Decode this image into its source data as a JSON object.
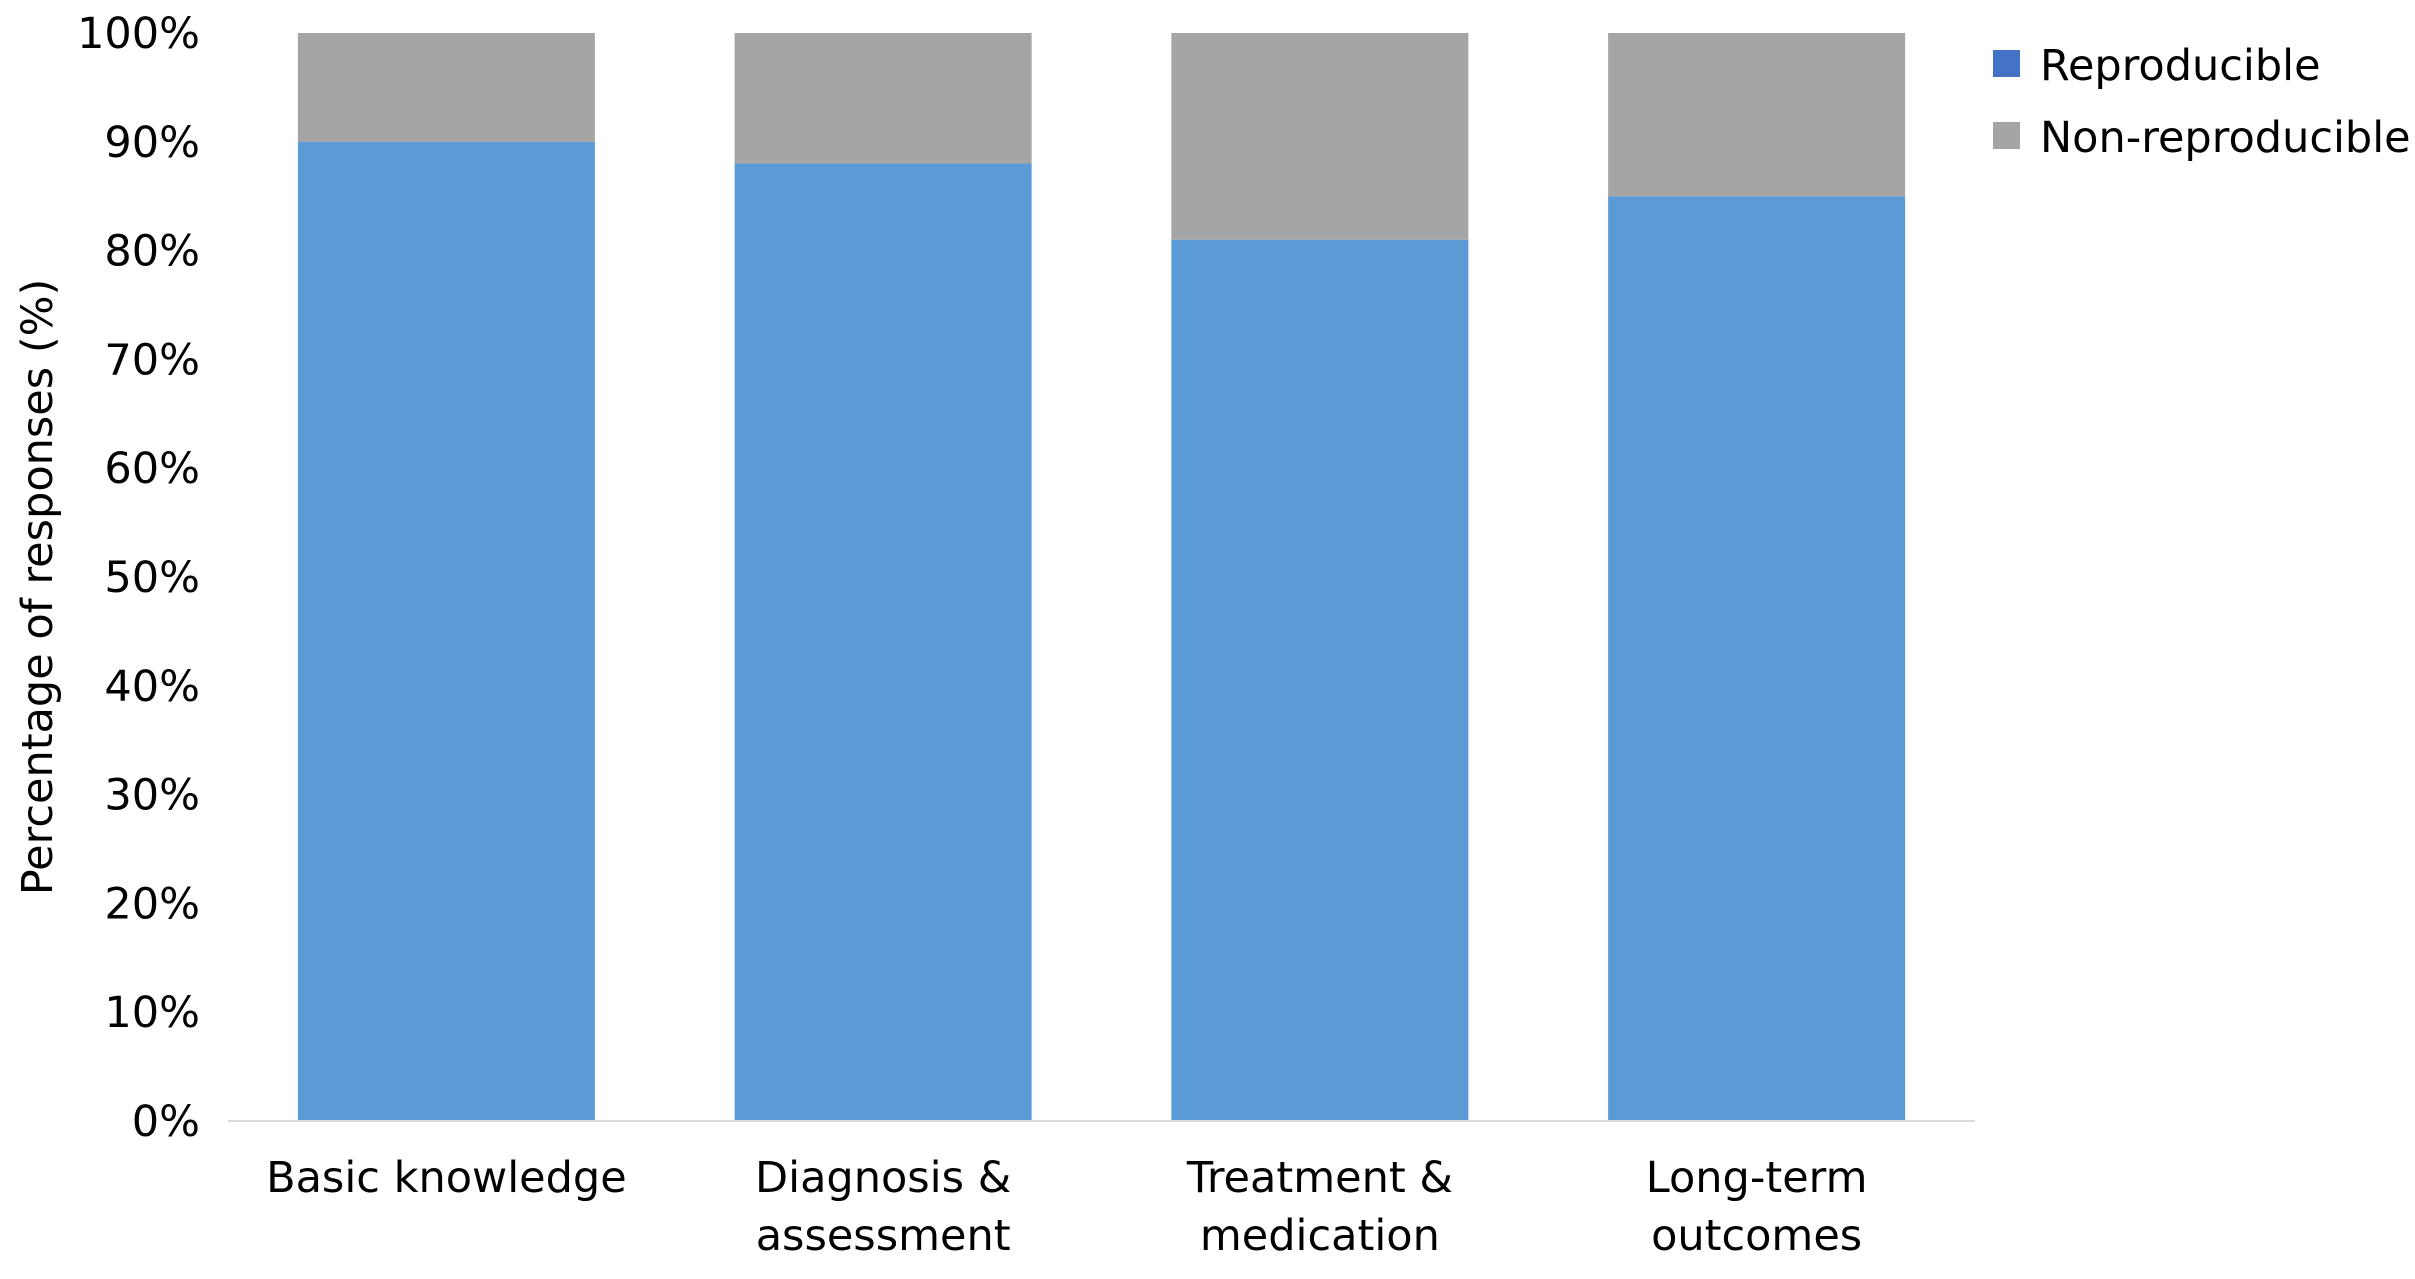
{
  "chart_data": {
    "type": "bar",
    "stacked": true,
    "categories": [
      [
        "Basic knowledge"
      ],
      [
        "Diagnosis &",
        "assessment"
      ],
      [
        "Treatment &",
        "medication"
      ],
      [
        "Long-term",
        "outcomes"
      ]
    ],
    "series": [
      {
        "name": "Reproducible",
        "values": [
          90,
          88,
          81,
          85
        ],
        "color": "#5B9BD5",
        "legend_color": "#4472C4"
      },
      {
        "name": "Non-reproducible",
        "values": [
          10,
          12,
          19,
          15
        ],
        "color": "#A5A5A5",
        "legend_color": "#A5A5A5"
      }
    ],
    "ylabel": "Percentage of responses (%)",
    "ylim": [
      0,
      100
    ],
    "yticks": [
      0,
      10,
      20,
      30,
      40,
      50,
      60,
      70,
      80,
      90,
      100
    ],
    "ytick_labels": [
      "0%",
      "10%",
      "20%",
      "30%",
      "40%",
      "50%",
      "60%",
      "70%",
      "80%",
      "90%",
      "100%"
    ],
    "grid": false,
    "legend_position": "top-right"
  }
}
